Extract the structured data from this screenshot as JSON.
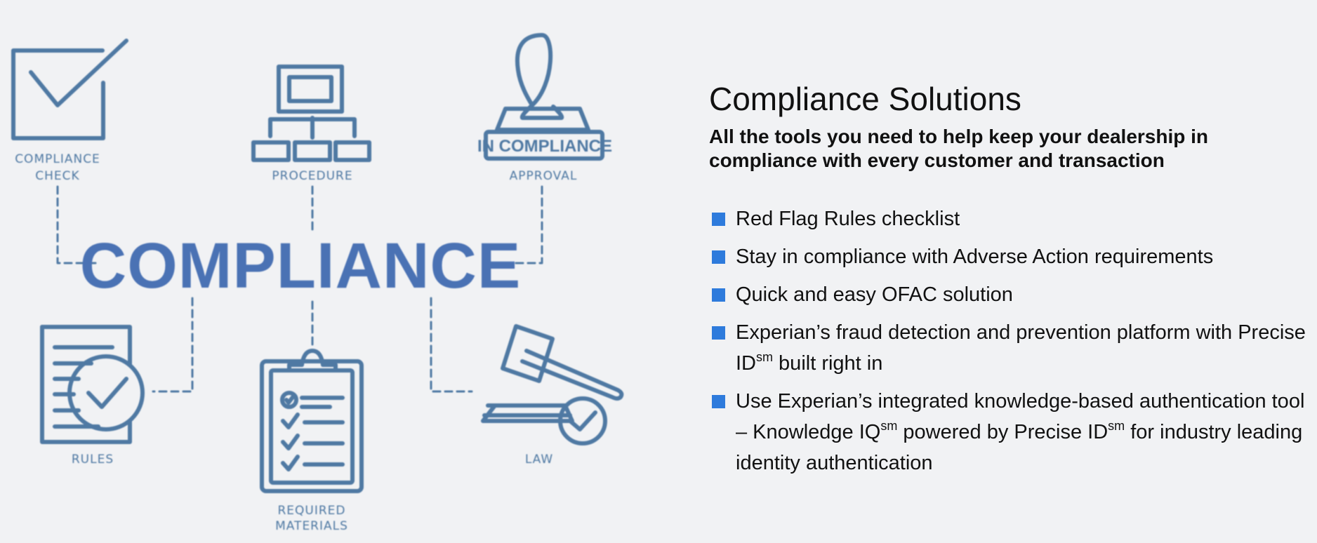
{
  "diagram": {
    "center_word": "COMPLIANCE",
    "nodes": {
      "compliance_check": {
        "line1": "COMPLIANCE",
        "line2": "CHECK",
        "icon": "checkbox-icon"
      },
      "procedure": {
        "label": "PROCEDURE",
        "icon": "flowchart-icon"
      },
      "approval": {
        "label": "APPROVAL",
        "icon": "stamp-icon",
        "stamp_text": "IN COMPLIANCE"
      },
      "rules": {
        "label": "RULES",
        "icon": "rules-document-icon"
      },
      "required_materials": {
        "line1": "REQUIRED",
        "line2": "MATERIALS",
        "icon": "clipboard-checklist-icon"
      },
      "law": {
        "label": "LAW",
        "icon": "gavel-icon"
      }
    },
    "accent_color": "#4f79a3",
    "center_color": "#4a72b4"
  },
  "content": {
    "title": "Compliance Solutions",
    "subtitle": "All the tools you need to help keep your dealership in compliance with every customer and transaction",
    "bullet_color": "#2e7bdc",
    "bullets": [
      {
        "text": "Red Flag Rules checklist"
      },
      {
        "text": "Stay in compliance with Adverse Action requirements"
      },
      {
        "text": "Quick and easy OFAC solution"
      },
      {
        "text_a": "Experian’s fraud detection and prevention platform with Precise ID",
        "sup_a": "sm",
        "text_b": " built right in"
      },
      {
        "text_a": "Use Experian’s integrated knowledge-based authentication tool – Knowledge IQ",
        "sup_a": "sm",
        "text_b": " powered by Precise ID",
        "sup_b": "sm",
        "text_c": " for industry leading identity authentication"
      }
    ]
  }
}
